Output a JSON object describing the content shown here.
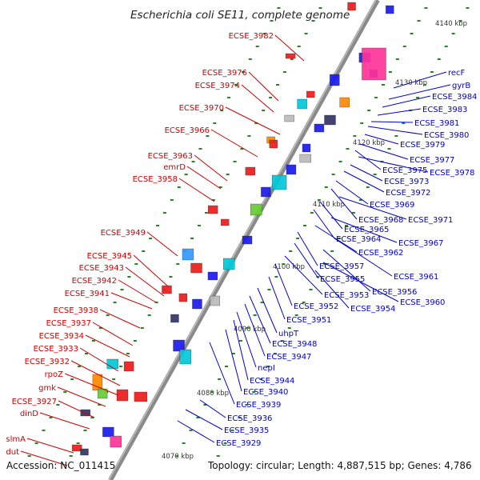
{
  "title": "Escherichia coli SE11, complete genome",
  "footer": {
    "accession": "Accession: NC_011415",
    "info": "Topology: circular; Length: 4,887,515 bp; Genes: 4,786"
  },
  "kbp_labels": [
    "4070 kbp",
    "4080 kbp",
    "4090 kbp",
    "4100 kbp",
    "4110 kbp",
    "4120 kbp",
    "4130 kbp",
    "4140 kbp"
  ],
  "left_labels": [
    "ECSE_3982",
    "ECSE_3976",
    "ECSE_3974",
    "ECSE_3970",
    "ECSE_3966",
    "ECSE_3963",
    "emrD",
    "ECSE_3958",
    "ECSE_3949",
    "ECSE_3945",
    "ECSE_3943",
    "ECSE_3942",
    "ECSE_3941",
    "ECSE_3938",
    "ECSE_3937",
    "ECSE_3934",
    "ECSE_3933",
    "ECSE_3932",
    "rpoZ",
    "gmk",
    "ECSE_3927",
    "dinD",
    "slmA",
    "dut"
  ],
  "right_labels": [
    "recF",
    "gyrB",
    "ECSE_3984",
    "ECSE_3983",
    "ECSE_3981",
    "ECSE_3980",
    "ECSE_3979",
    "ECSE_3977",
    "ECSE_3975",
    "ECSE_3978",
    "ECSE_3973",
    "ECSE_3972",
    "ECSE_3969",
    "ECSE_3968",
    "ECSE_3971",
    "ECSE_3965",
    "ECSE_3964",
    "ECSE_3967",
    "ECSE_3962",
    "ECSE_3957",
    "ECSE_3961",
    "ECSE_3955",
    "ECSE_3956",
    "ECSE_3953",
    "ECSE_3960",
    "ECSE_3952",
    "ECSE_3954",
    "ECSE_3951",
    "uhpT",
    "ECSE_3948",
    "ECSE_3947",
    "nepI",
    "ECSE_3944",
    "ECSE_3940",
    "ECSE_3939",
    "ECSE_3936",
    "ECSE_3935",
    "ECSE_3929"
  ],
  "colors": {
    "left_label": "#cc0000",
    "right_label": "#0000cc",
    "backbone": "#888888",
    "tick_dot": "#228822"
  }
}
